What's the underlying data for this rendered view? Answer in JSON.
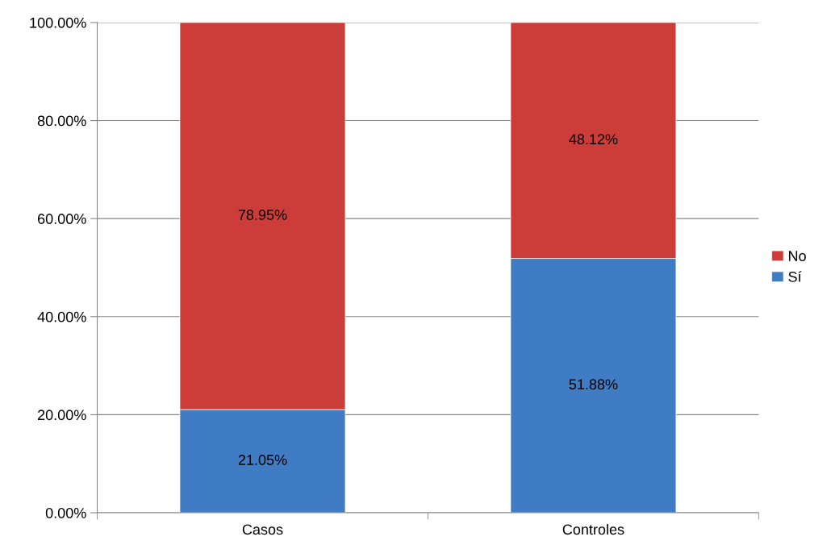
{
  "chart_data": {
    "type": "bar",
    "stacked": true,
    "categories": [
      "Casos",
      "Controles"
    ],
    "series": [
      {
        "name": "Sí",
        "color": "#3f7cc4",
        "values": [
          21.05,
          51.88
        ],
        "value_labels": [
          "21.05%",
          "51.88%"
        ]
      },
      {
        "name": "No",
        "color": "#cc3d3a",
        "values": [
          78.95,
          48.12
        ],
        "value_labels": [
          "78.95%",
          "48.12%"
        ]
      }
    ],
    "ylim": [
      0,
      100
    ],
    "yticks": [
      {
        "value": 0,
        "label": "0.00%"
      },
      {
        "value": 20,
        "label": "20.00%"
      },
      {
        "value": 40,
        "label": "40.00%"
      },
      {
        "value": 60,
        "label": "60.00%"
      },
      {
        "value": 80,
        "label": "80.00%"
      },
      {
        "value": 100,
        "label": "100.00%"
      }
    ],
    "grid": "y",
    "legend": "right"
  }
}
